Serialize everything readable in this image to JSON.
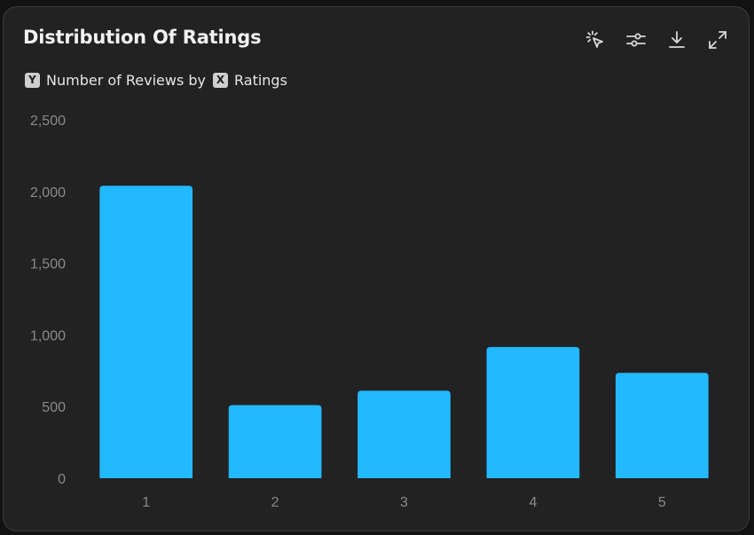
{
  "header": {
    "title": "Distribution Of Ratings",
    "y_badge": "Y",
    "y_label": "Number of Reviews by",
    "x_badge": "X",
    "x_label": "Ratings"
  },
  "toolbar": {
    "icons": [
      "select-pointer-icon",
      "filter-sliders-icon",
      "download-icon",
      "expand-icon"
    ]
  },
  "colors": {
    "bar": "#23b9ff",
    "background": "#222222",
    "tick_text": "#8a8a8a"
  },
  "chart_data": {
    "type": "bar",
    "categories": [
      "1",
      "2",
      "3",
      "4",
      "5"
    ],
    "values": [
      2040,
      510,
      610,
      915,
      735
    ],
    "ylim": [
      0,
      2500
    ],
    "yticks": [
      0,
      500,
      1000,
      1500,
      2000,
      2500
    ],
    "ytick_labels": [
      "0",
      "500",
      "1,000",
      "1,500",
      "2,000",
      "2,500"
    ],
    "xlabel": "",
    "ylabel": "",
    "grid": false,
    "legend": "none"
  }
}
